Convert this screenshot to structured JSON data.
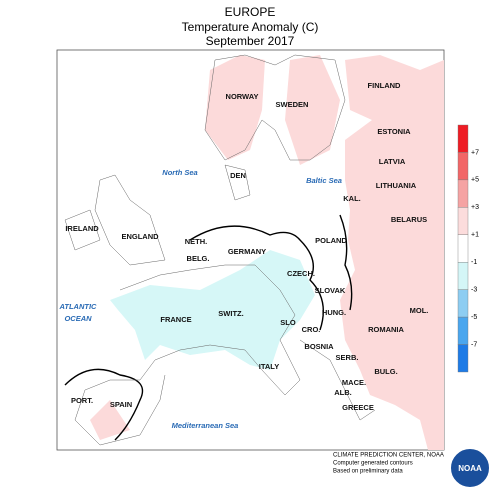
{
  "header": {
    "title": [
      "EUROPE",
      "Temperature Anomaly (C)",
      "September 2017"
    ]
  },
  "labels": [
    "NORWAY",
    "SWEDEN",
    "FINLAND",
    "ESTONIA",
    "LATVIA",
    "LITHUANIA",
    "BELARUS",
    "KAL.",
    "POLAND",
    "DEN",
    "NETH.",
    "BELG.",
    "GERMANY",
    "CZECH.",
    "SLOVAK",
    "HUNG.",
    "SWITZ.",
    "SLO",
    "CRO.",
    "BOSNIA",
    "SERB.",
    "ROMANIA",
    "MOL.",
    "BULG.",
    "MACE.",
    "ALB.",
    "GREECE",
    "ITALY",
    "FRANCE",
    "SPAIN",
    "PORT.",
    "IRELAND",
    "ENGLAND"
  ],
  "seas": [
    "North Sea",
    "Baltic Sea",
    "ATLANTIC OCEAN",
    "Mediterranean Sea"
  ],
  "legend": {
    "labels": [
      "+7",
      "+5",
      "+3",
      "+1",
      "-1",
      "-3",
      "-5",
      "-7"
    ],
    "colors": [
      "#ee1c24",
      "#f26667",
      "#f5a3a3",
      "#fcdcdc",
      "#ffffff",
      "#d4f6f7",
      "#8dcdf2",
      "#4aa6ee",
      "#1e7be6"
    ]
  },
  "footer": {
    "lines": [
      "CLIMATE PREDICTION CENTER, NOAA",
      "Computer generated contours",
      "Based on preliminary data"
    ],
    "logo": "NOAA"
  }
}
